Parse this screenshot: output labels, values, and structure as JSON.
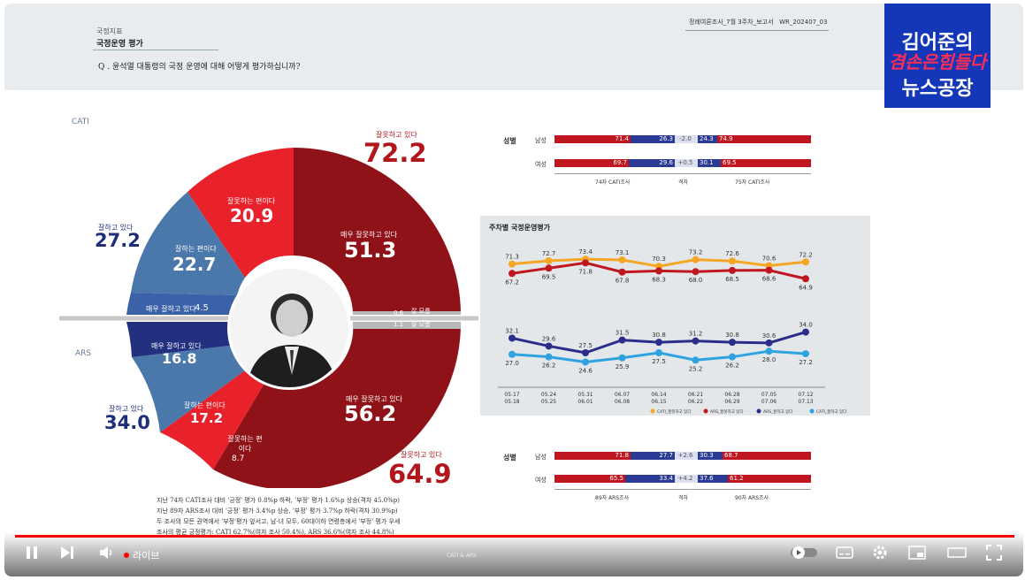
{
  "header": {
    "section_sub": "국정지표",
    "section_title": "국정운영 평가",
    "question": "Q . 윤석열 대통령의 국정 운영에 대해 어떻게 평가하십니까?",
    "report_name": "정례여론조사_7월 3주차_보고서",
    "report_code": "WR_202407_03"
  },
  "logo": {
    "line1": "김어준의",
    "line2": "겸손은힘들다",
    "line3": "뉴스공장"
  },
  "labels": {
    "cati": "CATI",
    "ars": "ARS"
  },
  "cati_donut": {
    "negative_total_label": "잘못하고 있다",
    "negative_total": "72.2",
    "very_negative_label": "매우 잘못하고 있다",
    "very_negative": "51.3",
    "somewhat_negative_label": "잘못하는 편이다",
    "somewhat_negative": "20.9",
    "positive_total_label": "잘하고 있다",
    "positive_total": "27.2",
    "somewhat_positive_label": "잘하는 편이다",
    "somewhat_positive": "22.7",
    "very_positive_label": "매우 잘하고 있다",
    "very_positive": "4.5",
    "dont_know_label": "잘 모름",
    "dont_know": "0.6"
  },
  "ars_donut": {
    "dont_know_label": "잘 모름",
    "dont_know": "1.1",
    "very_positive_label": "매우 잘하고 있다",
    "very_positive": "16.8",
    "somewhat_positive_label": "잘하는 편이다",
    "somewhat_positive": "17.2",
    "positive_total_label": "잘하고 있다",
    "positive_total": "34.0",
    "somewhat_negative_label": "잘못하는 편이다",
    "somewhat_negative": "8.7",
    "very_negative_label": "매우 잘못하고 있다",
    "very_negative": "56.2",
    "negative_total_label": "잘못하고 있다",
    "negative_total": "64.9"
  },
  "gender_cati": {
    "heading": "성별",
    "rows": [
      {
        "label": "남성",
        "neg_a": "71.4",
        "pos_a": "26.3",
        "diff": "-2.0",
        "pos_b": "24.3",
        "neg_b": "74.9"
      },
      {
        "label": "여성",
        "neg_a": "69.7",
        "pos_a": "29.6",
        "diff": "+0.5",
        "pos_b": "30.1",
        "neg_b": "69.5"
      }
    ],
    "footer_a": "74차 CATI조사",
    "footer_mid": "격차",
    "footer_b": "75차 CATI조사"
  },
  "gender_ars": {
    "heading": "성별",
    "rows": [
      {
        "label": "남성",
        "neg_a": "71.8",
        "pos_a": "27.7",
        "diff": "+2.6",
        "pos_b": "30.3",
        "neg_b": "68.7"
      },
      {
        "label": "여성",
        "neg_a": "65.5",
        "pos_a": "33.4",
        "diff": "+4.2",
        "pos_b": "37.6",
        "neg_b": "61.2"
      }
    ],
    "footer_a": "89차 ARS조사",
    "footer_mid": "격차",
    "footer_b": "90차 ARS조사"
  },
  "notes": [
    "지난 74차 CATI조사 대비 '긍정' 평가 0.8%p 하락, '부정' 평가 1.6%p 상승(격차 45.0%p)",
    "지난 89차 ARS조사 대비 '긍정' 평가 3.4%p 상승, '부정' 평가 3.7%p 하락(격차 30.9%p)",
    "두 조사의 모든 권역에서 '부정'평가 앞서고, 남·녀 모두, 60대이하 연령층에서 '부정' 평가 우세",
    "조사의 평균 긍정평가: CATI 62.7%(여자 조사 50.4%), ARS 36.6%(여자 조사 44.8%)"
  ],
  "chart_data": {
    "type": "line",
    "title": "주차별 국정운영평가",
    "categories": [
      "05.17\n05.18",
      "05.24\n05.25",
      "05.31\n06.01",
      "06.07\n06.08",
      "06.14\n06.15",
      "06.21\n06.22",
      "06.28\n06.29",
      "07.05\n07.06",
      "07.12\n07.13"
    ],
    "x_top": [
      "05.17",
      "05.24",
      "05.31",
      "06.07",
      "06.14",
      "06.21",
      "06.28",
      "07.05",
      "07.12"
    ],
    "x_bottom": [
      "05.18",
      "05.25",
      "06.01",
      "06.08",
      "06.15",
      "06.22",
      "06.29",
      "07.06",
      "07.13"
    ],
    "ylim": [
      20,
      80
    ],
    "series": [
      {
        "name": "CATI_잘못하고 있다",
        "color": "#f5a623",
        "values": [
          71.3,
          72.7,
          73.4,
          73.1,
          70.3,
          73.2,
          72.6,
          70.6,
          72.2
        ]
      },
      {
        "name": "ARS_잘못하고 있다",
        "color": "#c0161f",
        "values": [
          67.2,
          69.5,
          71.8,
          67.8,
          68.3,
          68.0,
          68.5,
          68.6,
          64.9
        ]
      },
      {
        "name": "ARS_잘하고 있다",
        "color": "#2a2e8a",
        "values": [
          32.1,
          29.6,
          27.5,
          31.5,
          30.8,
          31.2,
          30.8,
          30.6,
          34.0
        ]
      },
      {
        "name": "CATI_잘하고 있다",
        "color": "#2fa3e0",
        "values": [
          27.0,
          26.2,
          24.6,
          25.9,
          27.5,
          25.2,
          26.2,
          28.0,
          27.2
        ]
      }
    ]
  },
  "player": {
    "live_label": "라이브",
    "chapter_label": "CATI & ARS",
    "progress": 1.0
  },
  "colors": {
    "dark_red": "#8f1218",
    "red": "#e8212b",
    "steel_blue": "#4a78aa",
    "navy": "#22307f",
    "mid_blue": "#3b62a8"
  }
}
